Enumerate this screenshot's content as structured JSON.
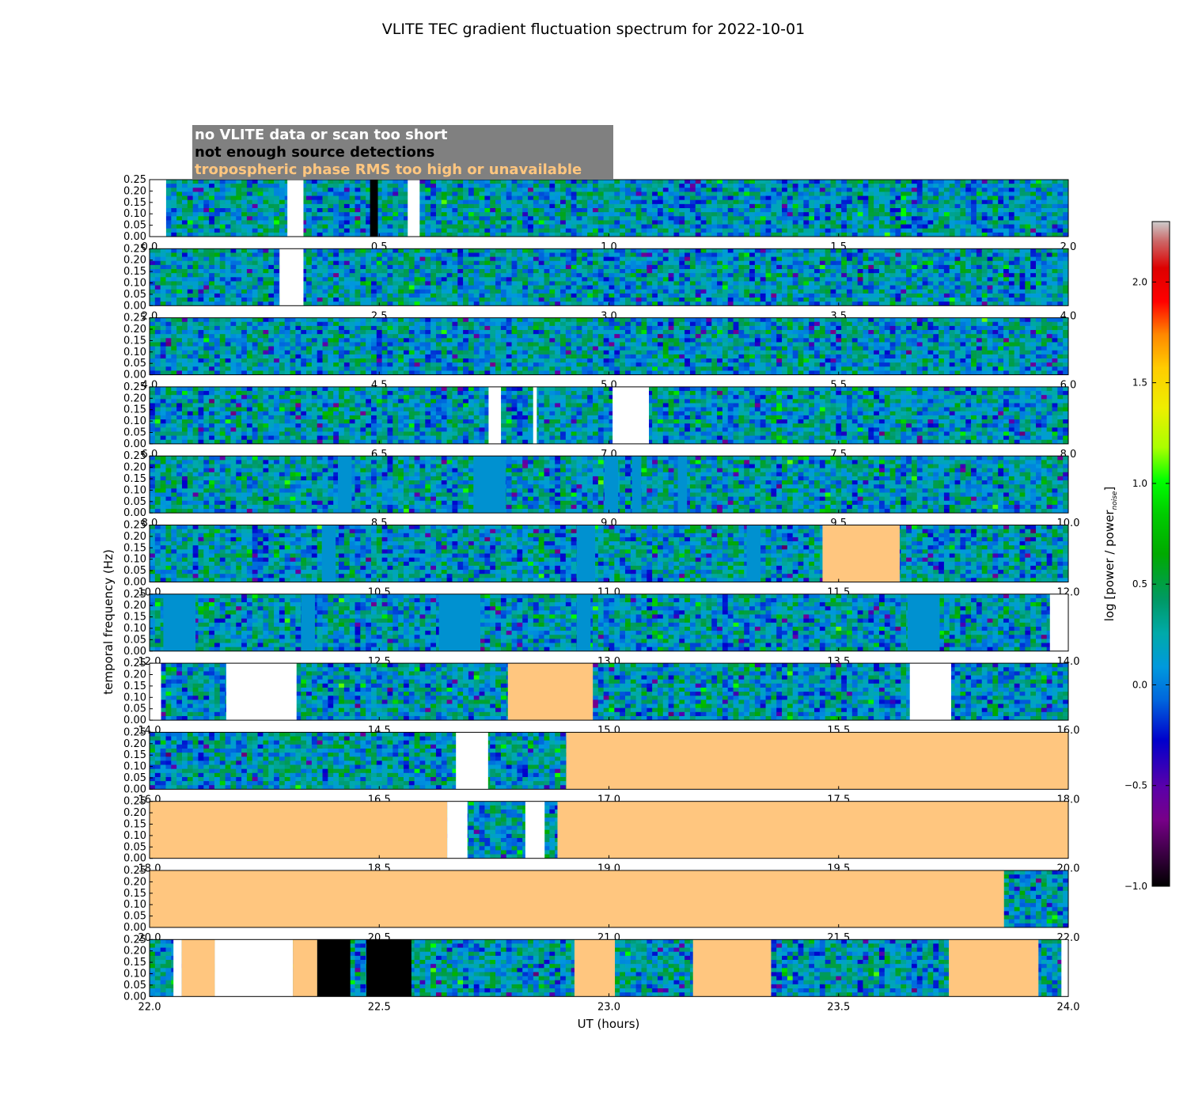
{
  "chart_data": {
    "type": "heatmap",
    "title": "VLITE TEC gradient fluctuation spectrum for 2022-10-01",
    "xlabel": "UT (hours)",
    "ylabel": "temporal frequency (Hz)",
    "colorbar": {
      "label_main": "log [power / power",
      "label_sub": "noise",
      "label_close": "]",
      "range": [
        -1.0,
        2.3
      ],
      "ticks": [
        "-1.0",
        "-0.5",
        "0.0",
        "0.5",
        "1.0",
        "1.5",
        "2.0"
      ],
      "colormap": "nipy_spectral"
    },
    "legend": {
      "placement": "top-left",
      "background": "#808080",
      "entries": [
        {
          "label": "no VLITE data or scan too short",
          "color": "#ffffff"
        },
        {
          "label": "not enough source detections",
          "color": "#000000"
        },
        {
          "label": "tropospheric phase RMS too high or unavailable",
          "color": "#ffc67f"
        }
      ]
    },
    "y_ticks": [
      "0.00",
      "0.05",
      "0.10",
      "0.15",
      "0.20",
      "0.25"
    ],
    "ylim": [
      0,
      0.25
    ],
    "flag_colors": {
      "white": "#ffffff",
      "black": "#000000",
      "orange": "#ffc67f",
      "flat": "#0091d0"
    },
    "panels": [
      {
        "xlim": [
          0,
          2
        ],
        "xticks": [
          "0.0",
          "0.5",
          "1.0",
          "1.5",
          "2.0"
        ],
        "flags": [
          [
            0,
            0.036,
            "white"
          ],
          [
            0.3,
            0.335,
            "white"
          ],
          [
            0.48,
            0.497,
            "black"
          ],
          [
            0.562,
            0.588,
            "white"
          ]
        ]
      },
      {
        "xlim": [
          2,
          4
        ],
        "xticks": [
          "2.0",
          "2.5",
          "3.0",
          "3.5",
          "4.0"
        ],
        "flags": [
          [
            2.283,
            2.335,
            "white"
          ]
        ]
      },
      {
        "xlim": [
          4,
          6
        ],
        "xticks": [
          "4.0",
          "4.5",
          "5.0",
          "5.5",
          "6.0"
        ],
        "flags": []
      },
      {
        "xlim": [
          6,
          8
        ],
        "xticks": [
          "6.0",
          "6.5",
          "7.0",
          "7.5",
          "8.0"
        ],
        "flags": [
          [
            6.738,
            6.765,
            "white"
          ],
          [
            6.835,
            6.843,
            "white"
          ],
          [
            7.008,
            7.087,
            "white"
          ]
        ]
      },
      {
        "xlim": [
          8,
          10
        ],
        "xticks": [
          "8.0",
          "8.5",
          "9.0",
          "9.5",
          "10.0"
        ],
        "flags": [
          [
            8.41,
            8.44,
            "flat"
          ],
          [
            8.705,
            8.775,
            "flat"
          ],
          [
            8.99,
            9.02,
            "flat"
          ],
          [
            9.05,
            9.07,
            "flat"
          ],
          [
            9.15,
            9.17,
            "flat"
          ]
        ]
      },
      {
        "xlim": [
          10,
          12
        ],
        "xticks": [
          "10.0",
          "10.5",
          "11.0",
          "11.5",
          "12.0"
        ],
        "flags": [
          [
            10.375,
            10.405,
            "flat"
          ],
          [
            10.93,
            10.97,
            "flat"
          ],
          [
            11.3,
            11.33,
            "flat"
          ],
          [
            11.465,
            11.633,
            "orange"
          ]
        ]
      },
      {
        "xlim": [
          12,
          14
        ],
        "xticks": [
          "12.0",
          "12.5",
          "13.0",
          "13.5",
          "14.0"
        ],
        "flags": [
          [
            12.03,
            12.1,
            "flat"
          ],
          [
            12.33,
            12.36,
            "flat"
          ],
          [
            12.63,
            12.72,
            "flat"
          ],
          [
            12.93,
            12.96,
            "flat"
          ],
          [
            13.65,
            13.72,
            "flat"
          ],
          [
            13.96,
            14.0,
            "white"
          ]
        ]
      },
      {
        "xlim": [
          14,
          16
        ],
        "xticks": [
          "14.0",
          "14.5",
          "15.0",
          "15.5",
          "16.0"
        ],
        "flags": [
          [
            14.0,
            14.025,
            "white"
          ],
          [
            14.167,
            14.32,
            "white"
          ],
          [
            14.78,
            14.965,
            "orange"
          ],
          [
            15.655,
            15.745,
            "white"
          ]
        ]
      },
      {
        "xlim": [
          16,
          18
        ],
        "xticks": [
          "16.0",
          "16.5",
          "17.0",
          "17.5",
          "18.0"
        ],
        "flags": [
          [
            16.667,
            16.737,
            "white"
          ],
          [
            16.907,
            18.0,
            "orange"
          ]
        ]
      },
      {
        "xlim": [
          18,
          20
        ],
        "xticks": [
          "18.0",
          "18.5",
          "19.0",
          "19.5",
          "20.0"
        ],
        "flags": [
          [
            18.0,
            18.648,
            "orange"
          ],
          [
            18.648,
            18.692,
            "white"
          ],
          [
            18.818,
            18.86,
            "white"
          ],
          [
            18.888,
            20.0,
            "orange"
          ]
        ]
      },
      {
        "xlim": [
          20,
          22
        ],
        "xticks": [
          "20.0",
          "20.5",
          "21.0",
          "21.5",
          "22.0"
        ],
        "flags": [
          [
            20.0,
            21.86,
            "orange"
          ]
        ]
      },
      {
        "xlim": [
          22,
          24
        ],
        "xticks": [
          "22.0",
          "22.5",
          "23.0",
          "23.5",
          "24.0"
        ],
        "flags": [
          [
            22.052,
            22.07,
            "white"
          ],
          [
            22.07,
            22.142,
            "orange"
          ],
          [
            22.142,
            22.312,
            "white"
          ],
          [
            22.312,
            22.365,
            "orange"
          ],
          [
            22.365,
            22.437,
            "black"
          ],
          [
            22.472,
            22.57,
            "black"
          ],
          [
            22.925,
            23.013,
            "orange"
          ],
          [
            23.183,
            23.353,
            "orange"
          ],
          [
            23.74,
            23.935,
            "orange"
          ],
          [
            23.985,
            24.0,
            "white"
          ]
        ]
      }
    ]
  }
}
